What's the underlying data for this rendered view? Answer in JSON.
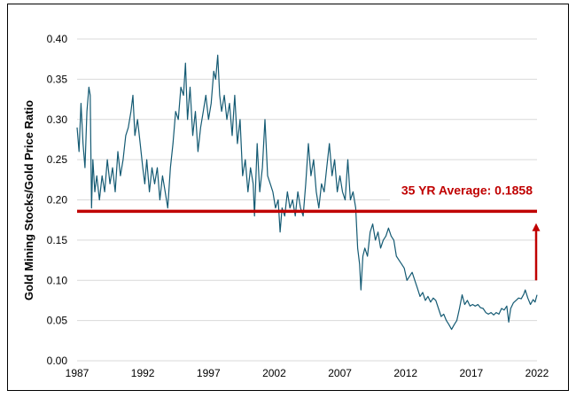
{
  "chart_data": {
    "type": "line",
    "title": "",
    "xlabel": "",
    "ylabel": "Gold Mining Stocks/Gold Price Ratio",
    "xlim": [
      1987,
      2022
    ],
    "ylim": [
      0,
      0.4
    ],
    "x_ticks": [
      "1987",
      "1992",
      "1997",
      "2002",
      "2007",
      "2012",
      "2017",
      "2022"
    ],
    "y_ticks": [
      "0.00",
      "0.05",
      "0.10",
      "0.15",
      "0.20",
      "0.25",
      "0.30",
      "0.35",
      "0.40"
    ],
    "grid": "horizontal",
    "colors": {
      "series": "#145a73",
      "average": "#c00000",
      "grid": "#d9d9d9"
    },
    "average": {
      "label": "35 YR Average: 0.1858",
      "value": 0.1858
    },
    "arrow": {
      "direction": "up",
      "from": 0.1,
      "to": 0.17,
      "x": 2022
    },
    "series": [
      {
        "points": [
          [
            1987.0,
            0.29
          ],
          [
            1987.15,
            0.26
          ],
          [
            1987.3,
            0.32
          ],
          [
            1987.45,
            0.27
          ],
          [
            1987.6,
            0.24
          ],
          [
            1987.75,
            0.31
          ],
          [
            1987.9,
            0.34
          ],
          [
            1988.0,
            0.33
          ],
          [
            1988.1,
            0.19
          ],
          [
            1988.2,
            0.25
          ],
          [
            1988.35,
            0.21
          ],
          [
            1988.5,
            0.23
          ],
          [
            1988.7,
            0.2
          ],
          [
            1988.9,
            0.23
          ],
          [
            1989.1,
            0.21
          ],
          [
            1989.3,
            0.25
          ],
          [
            1989.5,
            0.22
          ],
          [
            1989.7,
            0.24
          ],
          [
            1989.9,
            0.21
          ],
          [
            1990.1,
            0.26
          ],
          [
            1990.3,
            0.23
          ],
          [
            1990.5,
            0.25
          ],
          [
            1990.7,
            0.28
          ],
          [
            1990.9,
            0.29
          ],
          [
            1991.1,
            0.31
          ],
          [
            1991.25,
            0.33
          ],
          [
            1991.4,
            0.28
          ],
          [
            1991.6,
            0.3
          ],
          [
            1991.8,
            0.27
          ],
          [
            1992.0,
            0.24
          ],
          [
            1992.15,
            0.22
          ],
          [
            1992.3,
            0.25
          ],
          [
            1992.5,
            0.21
          ],
          [
            1992.7,
            0.24
          ],
          [
            1992.9,
            0.22
          ],
          [
            1993.1,
            0.24
          ],
          [
            1993.3,
            0.2
          ],
          [
            1993.5,
            0.23
          ],
          [
            1993.7,
            0.21
          ],
          [
            1993.9,
            0.19
          ],
          [
            1994.1,
            0.24
          ],
          [
            1994.3,
            0.27
          ],
          [
            1994.5,
            0.31
          ],
          [
            1994.7,
            0.3
          ],
          [
            1994.9,
            0.34
          ],
          [
            1995.1,
            0.33
          ],
          [
            1995.25,
            0.37
          ],
          [
            1995.4,
            0.3
          ],
          [
            1995.6,
            0.34
          ],
          [
            1995.8,
            0.28
          ],
          [
            1996.0,
            0.31
          ],
          [
            1996.2,
            0.26
          ],
          [
            1996.4,
            0.29
          ],
          [
            1996.6,
            0.31
          ],
          [
            1996.8,
            0.33
          ],
          [
            1997.0,
            0.3
          ],
          [
            1997.2,
            0.32
          ],
          [
            1997.4,
            0.36
          ],
          [
            1997.55,
            0.35
          ],
          [
            1997.7,
            0.38
          ],
          [
            1997.85,
            0.33
          ],
          [
            1998.0,
            0.31
          ],
          [
            1998.2,
            0.33
          ],
          [
            1998.4,
            0.3
          ],
          [
            1998.6,
            0.32
          ],
          [
            1998.8,
            0.28
          ],
          [
            1999.0,
            0.33
          ],
          [
            1999.2,
            0.27
          ],
          [
            1999.4,
            0.3
          ],
          [
            1999.6,
            0.23
          ],
          [
            1999.8,
            0.25
          ],
          [
            2000.0,
            0.21
          ],
          [
            2000.2,
            0.24
          ],
          [
            2000.4,
            0.22
          ],
          [
            2000.5,
            0.18
          ],
          [
            2000.7,
            0.27
          ],
          [
            2000.9,
            0.21
          ],
          [
            2001.1,
            0.24
          ],
          [
            2001.3,
            0.3
          ],
          [
            2001.5,
            0.23
          ],
          [
            2001.7,
            0.22
          ],
          [
            2001.9,
            0.21
          ],
          [
            2002.1,
            0.19
          ],
          [
            2002.3,
            0.2
          ],
          [
            2002.45,
            0.16
          ],
          [
            2002.6,
            0.19
          ],
          [
            2002.8,
            0.18
          ],
          [
            2003.0,
            0.21
          ],
          [
            2003.2,
            0.19
          ],
          [
            2003.4,
            0.2
          ],
          [
            2003.6,
            0.18
          ],
          [
            2003.8,
            0.21
          ],
          [
            2004.0,
            0.19
          ],
          [
            2004.2,
            0.18
          ],
          [
            2004.4,
            0.22
          ],
          [
            2004.6,
            0.27
          ],
          [
            2004.8,
            0.23
          ],
          [
            2005.0,
            0.25
          ],
          [
            2005.2,
            0.21
          ],
          [
            2005.4,
            0.19
          ],
          [
            2005.6,
            0.22
          ],
          [
            2005.8,
            0.21
          ],
          [
            2006.0,
            0.24
          ],
          [
            2006.2,
            0.27
          ],
          [
            2006.4,
            0.23
          ],
          [
            2006.6,
            0.25
          ],
          [
            2006.8,
            0.21
          ],
          [
            2007.0,
            0.23
          ],
          [
            2007.2,
            0.21
          ],
          [
            2007.4,
            0.2
          ],
          [
            2007.6,
            0.25
          ],
          [
            2007.8,
            0.2
          ],
          [
            2008.0,
            0.21
          ],
          [
            2008.2,
            0.19
          ],
          [
            2008.35,
            0.14
          ],
          [
            2008.5,
            0.12
          ],
          [
            2008.6,
            0.088
          ],
          [
            2008.75,
            0.13
          ],
          [
            2008.9,
            0.14
          ],
          [
            2009.1,
            0.13
          ],
          [
            2009.3,
            0.16
          ],
          [
            2009.5,
            0.17
          ],
          [
            2009.7,
            0.15
          ],
          [
            2009.9,
            0.16
          ],
          [
            2010.1,
            0.14
          ],
          [
            2010.3,
            0.15
          ],
          [
            2010.5,
            0.155
          ],
          [
            2010.7,
            0.165
          ],
          [
            2010.9,
            0.155
          ],
          [
            2011.1,
            0.15
          ],
          [
            2011.3,
            0.13
          ],
          [
            2011.5,
            0.125
          ],
          [
            2011.7,
            0.12
          ],
          [
            2011.9,
            0.115
          ],
          [
            2012.1,
            0.1
          ],
          [
            2012.3,
            0.105
          ],
          [
            2012.5,
            0.11
          ],
          [
            2012.7,
            0.1
          ],
          [
            2012.9,
            0.09
          ],
          [
            2013.1,
            0.08
          ],
          [
            2013.3,
            0.085
          ],
          [
            2013.5,
            0.075
          ],
          [
            2013.7,
            0.08
          ],
          [
            2013.9,
            0.073
          ],
          [
            2014.1,
            0.078
          ],
          [
            2014.3,
            0.075
          ],
          [
            2014.5,
            0.065
          ],
          [
            2014.7,
            0.055
          ],
          [
            2014.9,
            0.058
          ],
          [
            2015.1,
            0.05
          ],
          [
            2015.3,
            0.045
          ],
          [
            2015.5,
            0.039
          ],
          [
            2015.7,
            0.045
          ],
          [
            2015.9,
            0.05
          ],
          [
            2016.1,
            0.065
          ],
          [
            2016.3,
            0.082
          ],
          [
            2016.5,
            0.07
          ],
          [
            2016.7,
            0.075
          ],
          [
            2016.9,
            0.068
          ],
          [
            2017.1,
            0.07
          ],
          [
            2017.3,
            0.068
          ],
          [
            2017.5,
            0.07
          ],
          [
            2017.7,
            0.066
          ],
          [
            2017.9,
            0.065
          ],
          [
            2018.1,
            0.06
          ],
          [
            2018.3,
            0.058
          ],
          [
            2018.5,
            0.06
          ],
          [
            2018.7,
            0.057
          ],
          [
            2018.9,
            0.06
          ],
          [
            2019.1,
            0.058
          ],
          [
            2019.3,
            0.065
          ],
          [
            2019.5,
            0.063
          ],
          [
            2019.7,
            0.068
          ],
          [
            2019.85,
            0.048
          ],
          [
            2020.0,
            0.065
          ],
          [
            2020.2,
            0.072
          ],
          [
            2020.4,
            0.075
          ],
          [
            2020.6,
            0.078
          ],
          [
            2020.8,
            0.077
          ],
          [
            2021.0,
            0.083
          ],
          [
            2021.1,
            0.088
          ],
          [
            2021.3,
            0.078
          ],
          [
            2021.5,
            0.07
          ],
          [
            2021.7,
            0.076
          ],
          [
            2021.85,
            0.073
          ],
          [
            2022.0,
            0.082
          ]
        ]
      }
    ]
  }
}
